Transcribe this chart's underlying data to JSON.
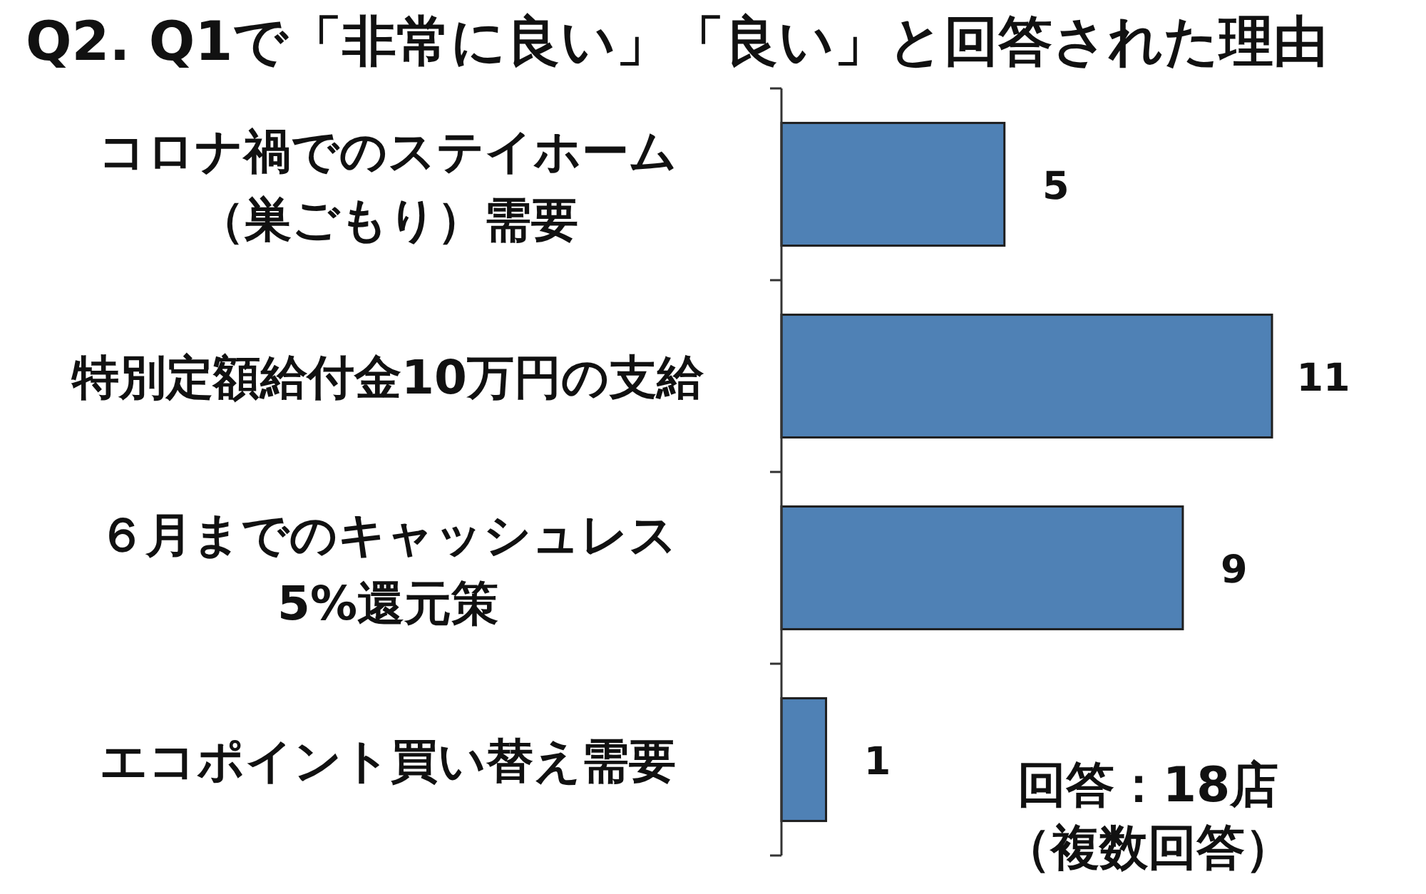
{
  "chart_data": {
    "type": "bar",
    "orientation": "horizontal",
    "title": "Q2. Q1で「非常に良い」「良い」と回答された理由",
    "categories": [
      "コロナ禍でのステイホーム（巣ごもり）需要",
      "特別定額給付金10万円の支給",
      "６月までのキャッシュレス5%還元策",
      "エコポイント買い替え需要"
    ],
    "values": [
      5,
      11,
      9,
      1
    ],
    "color": "#4f81b5",
    "data_labels": true,
    "annotations": [
      "回答：18店",
      "（複数回答）"
    ]
  }
}
